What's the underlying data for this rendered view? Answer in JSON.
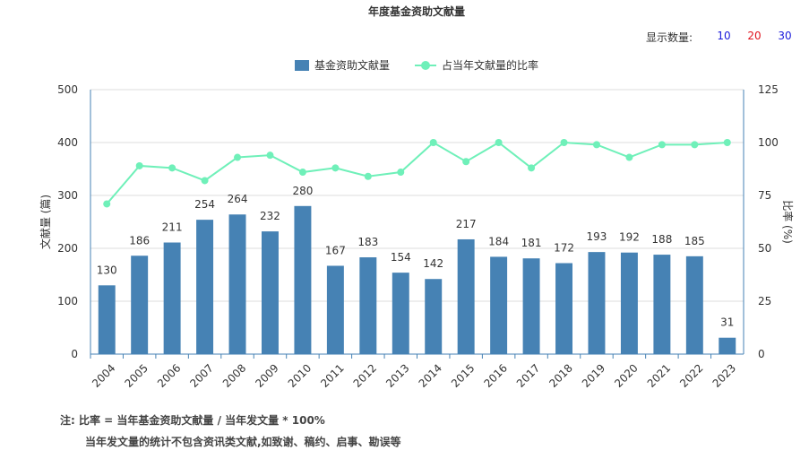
{
  "title": "年度基金资助文献量",
  "display_count": {
    "label": "显示数量:",
    "options": [
      {
        "text": "10",
        "color": "#1a1adb"
      },
      {
        "text": "20",
        "color": "#e0141e"
      },
      {
        "text": "30",
        "color": "#1a1adb"
      }
    ]
  },
  "colors": {
    "bar": "#4682b4",
    "line": "#6ff0b9",
    "axis": "#333333",
    "grid": "#dddddd"
  },
  "chart_data": {
    "type": "bar",
    "categories": [
      "2004",
      "2005",
      "2006",
      "2007",
      "2008",
      "2009",
      "2010",
      "2011",
      "2012",
      "2013",
      "2014",
      "2015",
      "2016",
      "2017",
      "2018",
      "2019",
      "2020",
      "2021",
      "2022",
      "2023"
    ],
    "series": [
      {
        "name": "基金资助文献量",
        "type": "bar",
        "axis": "left",
        "values": [
          130,
          186,
          211,
          254,
          264,
          232,
          280,
          167,
          183,
          154,
          142,
          217,
          184,
          181,
          172,
          193,
          192,
          188,
          185,
          31
        ]
      },
      {
        "name": "占当年文献量的比率",
        "type": "line",
        "axis": "right",
        "values": [
          71,
          89,
          88,
          82,
          93,
          94,
          86,
          88,
          84,
          86,
          100,
          91,
          100,
          88,
          100,
          99,
          93,
          99,
          99,
          100
        ]
      }
    ],
    "ylabel": "文献量 (篇)",
    "y2label": "比率 (%)",
    "ylim": [
      0,
      500
    ],
    "y2lim": [
      0,
      125
    ],
    "yticks": [
      "0",
      "100",
      "200",
      "300",
      "400",
      "500"
    ],
    "y2ticks": [
      "0",
      "25",
      "50",
      "75",
      "100",
      "125"
    ],
    "grid": true,
    "legend": "top-center"
  },
  "notes": {
    "line1": "注:  比率 = 当年基金资助文献量 / 当年发文量 * 100%",
    "line2": "当年发文量的统计不包含资讯类文献,如致谢、稿约、启事、勘误等"
  }
}
